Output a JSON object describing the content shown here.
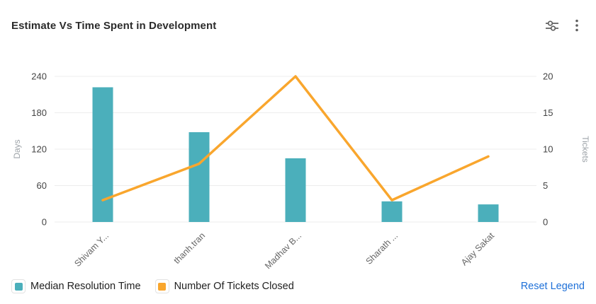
{
  "header": {
    "title": "Estimate Vs Time Spent in Development",
    "icons": [
      "filter-sliders-icon",
      "more-options-icon"
    ]
  },
  "chart_data": {
    "type": "combo-bar-line",
    "categories": [
      "Shivam Y...",
      "thanh.tran",
      "Madhav B...",
      "Sharath ...",
      "Ajay Sakat"
    ],
    "series": [
      {
        "name": "Median Resolution Time",
        "type": "bar",
        "axis": "left",
        "color": "#4BAFBB",
        "values": [
          222,
          148,
          105,
          34,
          29
        ]
      },
      {
        "name": "Number Of Tickets Closed",
        "type": "line",
        "axis": "right",
        "color": "#F9A62D",
        "values": [
          3,
          8,
          20,
          3,
          9
        ]
      }
    ],
    "left_axis": {
      "label": "Days",
      "range": [
        0,
        240
      ],
      "ticks": [
        0,
        60,
        120,
        180,
        240
      ]
    },
    "right_axis": {
      "label": "Tickets",
      "range": [
        0,
        20
      ],
      "ticks": [
        0,
        5,
        10,
        15,
        20
      ]
    },
    "grid": true,
    "legend_position": "bottom",
    "x_label_rotation": -45
  },
  "legend": {
    "items": [
      {
        "label": "Median Resolution Time",
        "color": "#4BAFBB"
      },
      {
        "label": "Number Of Tickets Closed",
        "color": "#F9A62D"
      }
    ],
    "reset_label": "Reset Legend"
  },
  "colors": {
    "bar_teal": "#4BAFBB",
    "line_orange": "#F9A62D",
    "reset_blue": "#1e70d8",
    "gridline": "#ededed",
    "tick_text": "#444444",
    "category_text": "#666666",
    "axis_name_text": "#9da3a8",
    "icon_gray": "#5f5f5f"
  }
}
